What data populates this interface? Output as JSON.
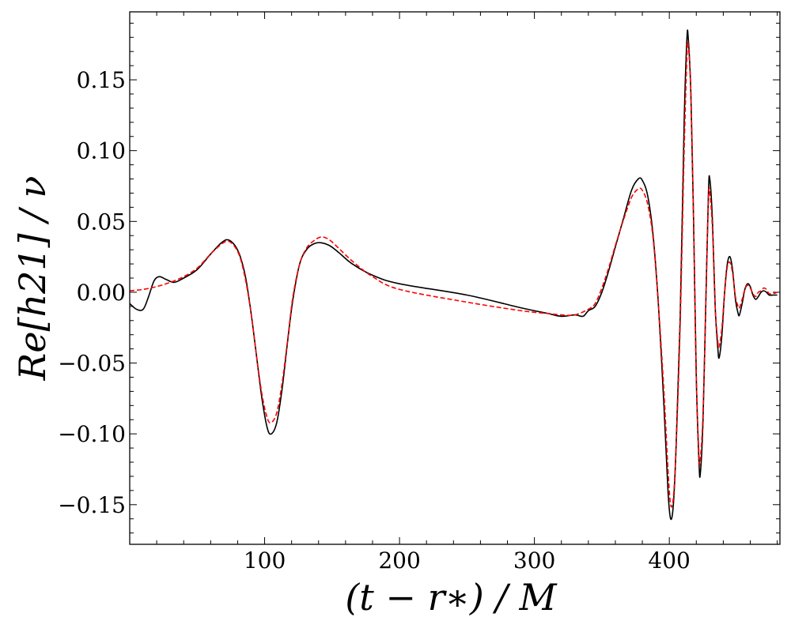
{
  "chart_data": {
    "type": "line",
    "xlabel": "(t − r∗) / M",
    "ylabel": "Re[h21] / ν",
    "xlim": [
      0,
      482
    ],
    "ylim": [
      -0.178,
      0.198
    ],
    "x_ticks": [
      100,
      200,
      300,
      400
    ],
    "x_tick_labels": [
      "100",
      "200",
      "300",
      "400"
    ],
    "y_ticks": [
      -0.15,
      -0.1,
      -0.05,
      0.0,
      0.05,
      0.1,
      0.15
    ],
    "y_tick_labels": [
      "−0.15",
      "−0.10",
      "−0.05",
      "0.00",
      "0.05",
      "0.10",
      "0.15"
    ],
    "grid": false,
    "series": [
      {
        "color": "#000000",
        "style": "solid",
        "points": [
          [
            0,
            -0.008
          ],
          [
            5,
            -0.012
          ],
          [
            10,
            -0.012
          ],
          [
            14,
            -0.003
          ],
          [
            18,
            0.008
          ],
          [
            22,
            0.011
          ],
          [
            27,
            0.009
          ],
          [
            33,
            0.007
          ],
          [
            40,
            0.01
          ],
          [
            50,
            0.016
          ],
          [
            60,
            0.027
          ],
          [
            68,
            0.035
          ],
          [
            73,
            0.037
          ],
          [
            78,
            0.033
          ],
          [
            82,
            0.025
          ],
          [
            86,
            0.01
          ],
          [
            90,
            -0.015
          ],
          [
            94,
            -0.045
          ],
          [
            98,
            -0.075
          ],
          [
            102,
            -0.096
          ],
          [
            105,
            -0.1
          ],
          [
            109,
            -0.092
          ],
          [
            113,
            -0.068
          ],
          [
            117,
            -0.035
          ],
          [
            121,
            -0.005
          ],
          [
            126,
            0.02
          ],
          [
            131,
            0.03
          ],
          [
            136,
            0.034
          ],
          [
            141,
            0.035
          ],
          [
            148,
            0.033
          ],
          [
            155,
            0.028
          ],
          [
            165,
            0.02
          ],
          [
            180,
            0.012
          ],
          [
            200,
            0.006
          ],
          [
            250,
            -0.002
          ],
          [
            290,
            -0.011
          ],
          [
            310,
            -0.015
          ],
          [
            320,
            -0.017
          ],
          [
            330,
            -0.016
          ],
          [
            336,
            -0.017
          ],
          [
            340,
            -0.013
          ],
          [
            345,
            -0.01
          ],
          [
            350,
            0.0
          ],
          [
            355,
            0.015
          ],
          [
            360,
            0.032
          ],
          [
            366,
            0.052
          ],
          [
            372,
            0.072
          ],
          [
            377,
            0.08
          ],
          [
            380,
            0.079
          ],
          [
            384,
            0.068
          ],
          [
            388,
            0.04
          ],
          [
            392,
            -0.01
          ],
          [
            396,
            -0.08
          ],
          [
            399,
            -0.14
          ],
          [
            401,
            -0.16
          ],
          [
            403,
            -0.15
          ],
          [
            405,
            -0.11
          ],
          [
            408,
            -0.02
          ],
          [
            411,
            0.12
          ],
          [
            413,
            0.178
          ],
          [
            414,
            0.18
          ],
          [
            416,
            0.14
          ],
          [
            418,
            0.05
          ],
          [
            420,
            -0.06
          ],
          [
            422,
            -0.12
          ],
          [
            423,
            -0.128
          ],
          [
            425,
            -0.09
          ],
          [
            427,
            -0.01
          ],
          [
            429,
            0.07
          ],
          [
            430,
            0.08
          ],
          [
            432,
            0.05
          ],
          [
            434,
            -0.01
          ],
          [
            436,
            -0.04
          ],
          [
            437,
            -0.046
          ],
          [
            439,
            -0.03
          ],
          [
            441,
            0.0
          ],
          [
            443,
            0.02
          ],
          [
            445,
            0.025
          ],
          [
            447,
            0.015
          ],
          [
            449,
            -0.005
          ],
          [
            451,
            -0.015
          ],
          [
            452,
            -0.016
          ],
          [
            454,
            -0.008
          ],
          [
            456,
            0.002
          ],
          [
            458,
            0.006
          ],
          [
            460,
            0.004
          ],
          [
            462,
            -0.002
          ],
          [
            464,
            -0.005
          ],
          [
            466,
            -0.003
          ],
          [
            468,
            0.0
          ],
          [
            470,
            0.001
          ],
          [
            472,
            0.0
          ],
          [
            474,
            -0.002
          ],
          [
            477,
            -0.002
          ],
          [
            480,
            -0.002
          ]
        ]
      },
      {
        "color": "#ff0000",
        "style": "dashed",
        "points": [
          [
            0,
            0.001
          ],
          [
            10,
            0.002
          ],
          [
            20,
            0.004
          ],
          [
            30,
            0.007
          ],
          [
            40,
            0.011
          ],
          [
            50,
            0.017
          ],
          [
            60,
            0.027
          ],
          [
            68,
            0.034
          ],
          [
            73,
            0.036
          ],
          [
            78,
            0.032
          ],
          [
            82,
            0.024
          ],
          [
            86,
            0.008
          ],
          [
            90,
            -0.015
          ],
          [
            94,
            -0.045
          ],
          [
            98,
            -0.072
          ],
          [
            102,
            -0.089
          ],
          [
            105,
            -0.092
          ],
          [
            109,
            -0.085
          ],
          [
            113,
            -0.064
          ],
          [
            117,
            -0.034
          ],
          [
            121,
            -0.003
          ],
          [
            126,
            0.02
          ],
          [
            131,
            0.031
          ],
          [
            136,
            0.036
          ],
          [
            142,
            0.039
          ],
          [
            148,
            0.037
          ],
          [
            155,
            0.031
          ],
          [
            165,
            0.022
          ],
          [
            180,
            0.011
          ],
          [
            200,
            0.002
          ],
          [
            250,
            -0.007
          ],
          [
            290,
            -0.013
          ],
          [
            310,
            -0.015
          ],
          [
            320,
            -0.016
          ],
          [
            330,
            -0.016
          ],
          [
            340,
            -0.012
          ],
          [
            345,
            -0.008
          ],
          [
            350,
            0.003
          ],
          [
            355,
            0.017
          ],
          [
            360,
            0.033
          ],
          [
            366,
            0.051
          ],
          [
            372,
            0.067
          ],
          [
            377,
            0.073
          ],
          [
            380,
            0.072
          ],
          [
            384,
            0.062
          ],
          [
            388,
            0.038
          ],
          [
            392,
            -0.01
          ],
          [
            396,
            -0.07
          ],
          [
            399,
            -0.125
          ],
          [
            401,
            -0.15
          ],
          [
            403,
            -0.145
          ],
          [
            405,
            -0.11
          ],
          [
            408,
            -0.025
          ],
          [
            411,
            0.1
          ],
          [
            413,
            0.165
          ],
          [
            414,
            0.175
          ],
          [
            416,
            0.14
          ],
          [
            418,
            0.05
          ],
          [
            420,
            -0.06
          ],
          [
            422,
            -0.115
          ],
          [
            423,
            -0.118
          ],
          [
            425,
            -0.085
          ],
          [
            427,
            -0.01
          ],
          [
            429,
            0.065
          ],
          [
            430,
            0.07
          ],
          [
            432,
            0.045
          ],
          [
            434,
            -0.01
          ],
          [
            436,
            -0.035
          ],
          [
            437,
            -0.038
          ],
          [
            439,
            -0.025
          ],
          [
            441,
            0.0
          ],
          [
            443,
            0.018
          ],
          [
            445,
            0.021
          ],
          [
            447,
            0.013
          ],
          [
            449,
            -0.003
          ],
          [
            451,
            -0.01
          ],
          [
            452,
            -0.011
          ],
          [
            454,
            -0.005
          ],
          [
            456,
            0.002
          ],
          [
            458,
            0.005
          ],
          [
            460,
            0.003
          ],
          [
            462,
            -0.001
          ],
          [
            464,
            -0.003
          ],
          [
            466,
            0.0
          ],
          [
            468,
            0.001
          ],
          [
            470,
            0.003
          ],
          [
            472,
            0.002
          ],
          [
            474,
            -0.001
          ],
          [
            477,
            -0.001
          ],
          [
            480,
            0.0
          ]
        ]
      }
    ]
  }
}
